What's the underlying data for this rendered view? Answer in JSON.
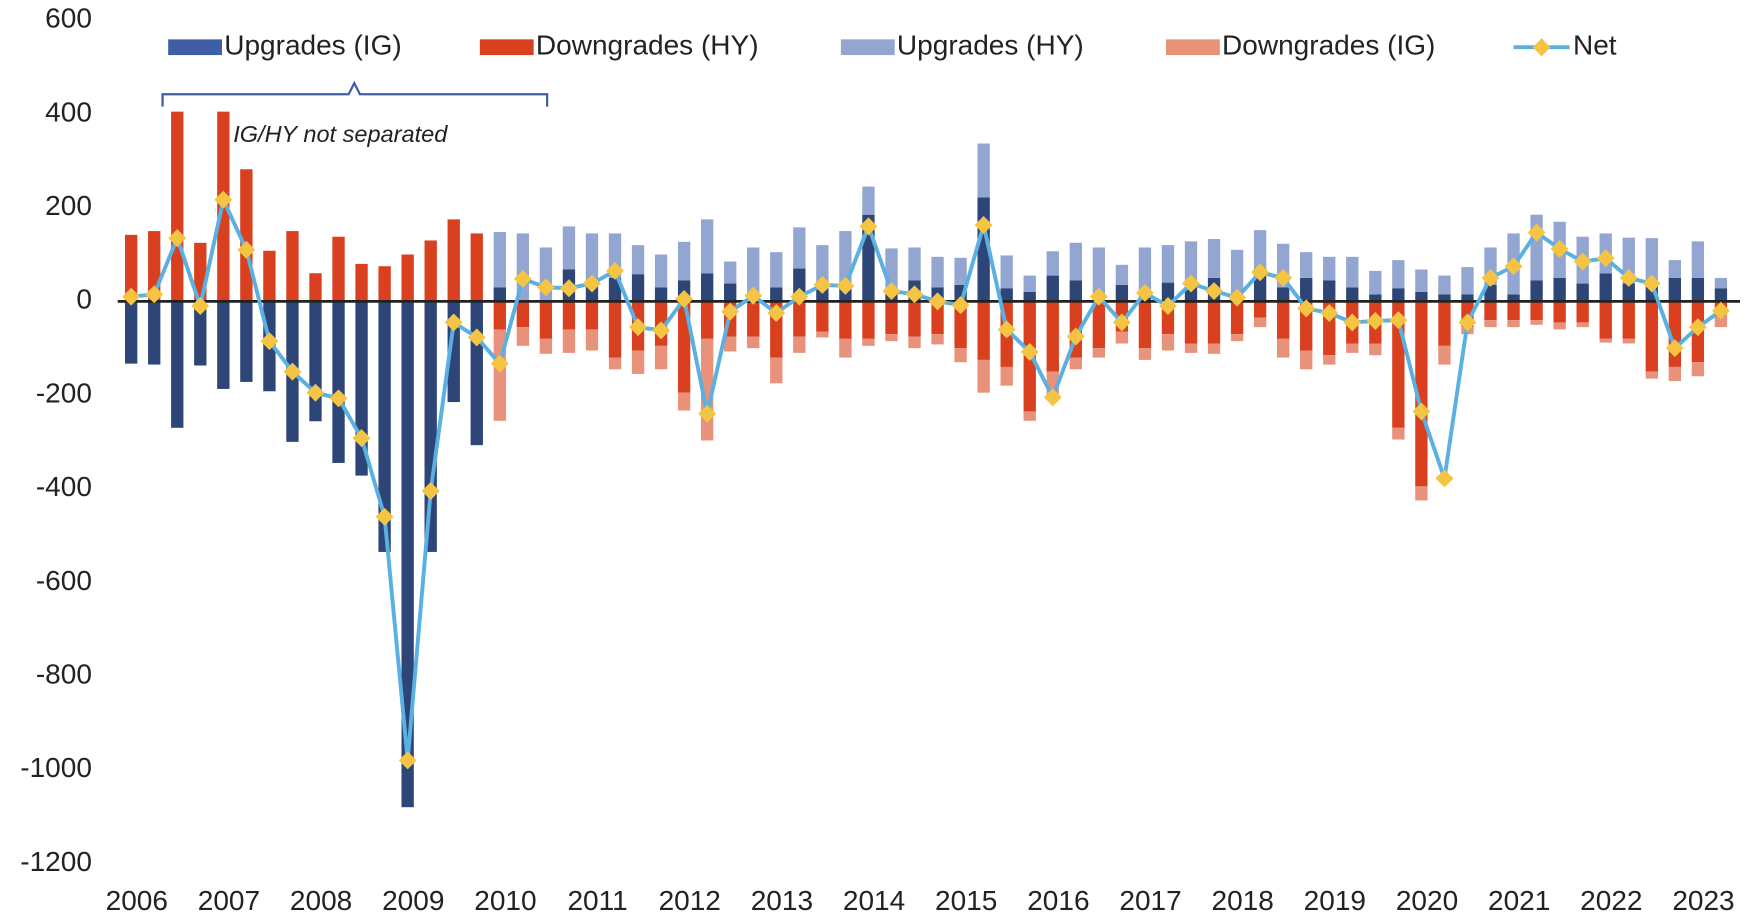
{
  "chart_data": {
    "type": "bar",
    "annotation": "IG/HY not separated",
    "categories": [
      "2006",
      null,
      null,
      null,
      "2007",
      null,
      null,
      null,
      "2008",
      null,
      null,
      null,
      "2009",
      null,
      null,
      null,
      "2010",
      null,
      null,
      null,
      "2011",
      null,
      null,
      null,
      "2012",
      null,
      null,
      null,
      "2013",
      null,
      null,
      null,
      "2014",
      null,
      null,
      null,
      "2015",
      null,
      null,
      null,
      "2016",
      null,
      null,
      null,
      "2017",
      null,
      null,
      null,
      "2018",
      null,
      null,
      null,
      "2019",
      null,
      null,
      null,
      "2020",
      null,
      null,
      null,
      "2021",
      null,
      null,
      null,
      "2022",
      null,
      null,
      null,
      "2023",
      null
    ],
    "ylim": [
      -1200,
      600
    ],
    "yticks": [
      600,
      400,
      200,
      0,
      -200,
      -400,
      -600,
      -800,
      -1000,
      -1200
    ],
    "grid": false,
    "legend": "top",
    "series": [
      {
        "name": "Upgrades (IG)",
        "color": "#2e4677",
        "legend_color": "#3f5ea6",
        "values": [
          -133,
          -135,
          -270,
          -137,
          -187,
          -172,
          -192,
          -300,
          -256,
          -345,
          -372,
          -535,
          -1080,
          -535,
          -215,
          -307,
          30,
          0,
          0,
          68,
          40,
          50,
          58,
          30,
          45,
          60,
          38,
          15,
          30,
          70,
          30,
          40,
          185,
          25,
          45,
          30,
          35,
          222,
          28,
          20,
          55,
          45,
          10,
          35,
          10,
          40,
          30,
          50,
          10,
          70,
          30,
          50,
          45,
          30,
          15,
          28,
          20,
          15,
          15,
          35,
          15,
          45,
          50,
          38,
          60,
          38,
          35,
          50,
          50,
          28
        ]
      },
      {
        "name": "Downgrades (HY)",
        "color": "#d8401f",
        "values": [
          142,
          150,
          405,
          125,
          405,
          282,
          108,
          150,
          60,
          138,
          80,
          75,
          100,
          130,
          175,
          145,
          -60,
          -55,
          -80,
          -60,
          -60,
          -120,
          -105,
          -95,
          -195,
          -80,
          -75,
          -75,
          -120,
          -75,
          -65,
          -80,
          -80,
          -70,
          -75,
          -70,
          -100,
          -125,
          -140,
          -235,
          -150,
          -120,
          -100,
          -65,
          -100,
          -70,
          -90,
          -90,
          -70,
          -35,
          -80,
          -105,
          -115,
          -90,
          -90,
          -270,
          -395,
          -95,
          -55,
          -40,
          -40,
          -40,
          -45,
          -45,
          -80,
          -80,
          -150,
          -140,
          -130,
          -20
        ]
      },
      {
        "name": "Upgrades (HY)",
        "color": "#93a5d1",
        "values": [
          null,
          null,
          null,
          null,
          null,
          null,
          null,
          null,
          null,
          null,
          null,
          null,
          null,
          null,
          null,
          null,
          118,
          145,
          115,
          92,
          105,
          95,
          62,
          70,
          82,
          115,
          47,
          100,
          75,
          88,
          90,
          110,
          60,
          88,
          70,
          65,
          58,
          115,
          70,
          35,
          52,
          80,
          105,
          43,
          105,
          80,
          98,
          83,
          100,
          82,
          93,
          55,
          50,
          65,
          50,
          60,
          48,
          40,
          58,
          80,
          130,
          140,
          120,
          100,
          85,
          98,
          100,
          38,
          78,
          22
        ]
      },
      {
        "name": "Downgrades (IG)",
        "color": "#e8917b",
        "values": [
          null,
          null,
          null,
          null,
          null,
          null,
          null,
          null,
          null,
          null,
          null,
          null,
          null,
          null,
          null,
          null,
          -195,
          -40,
          -32,
          -50,
          -45,
          -25,
          -50,
          -50,
          -38,
          -217,
          -32,
          -25,
          -55,
          -35,
          -12,
          -40,
          -15,
          -15,
          -25,
          -22,
          -30,
          -70,
          -40,
          -20,
          -50,
          -25,
          -20,
          -25,
          -25,
          -35,
          -20,
          -22,
          -15,
          -20,
          -40,
          -40,
          -20,
          -20,
          -25,
          -25,
          -30,
          -40,
          -15,
          -15,
          -15,
          -10,
          -15,
          -10,
          -8,
          -10,
          -15,
          -30,
          -30,
          -35
        ]
      },
      {
        "name": "Net",
        "type": "line",
        "color": "#5bb0e2",
        "marker_color": "#f6c443",
        "values": [
          10,
          15,
          135,
          -10,
          217,
          110,
          -85,
          -150,
          -195,
          -207,
          -292,
          -460,
          -980,
          -405,
          -45,
          -77,
          -133,
          48,
          30,
          28,
          38,
          65,
          -55,
          -62,
          5,
          -240,
          -22,
          12,
          -25,
          10,
          35,
          33,
          160,
          22,
          15,
          0,
          -8,
          163,
          -60,
          -108,
          -205,
          -75,
          10,
          -45,
          18,
          -10,
          38,
          22,
          8,
          62,
          50,
          -15,
          -25,
          -45,
          -42,
          -40,
          -235,
          -378,
          -45,
          50,
          75,
          147,
          112,
          85,
          92,
          50,
          38,
          -100,
          -55,
          -20
        ]
      }
    ]
  }
}
